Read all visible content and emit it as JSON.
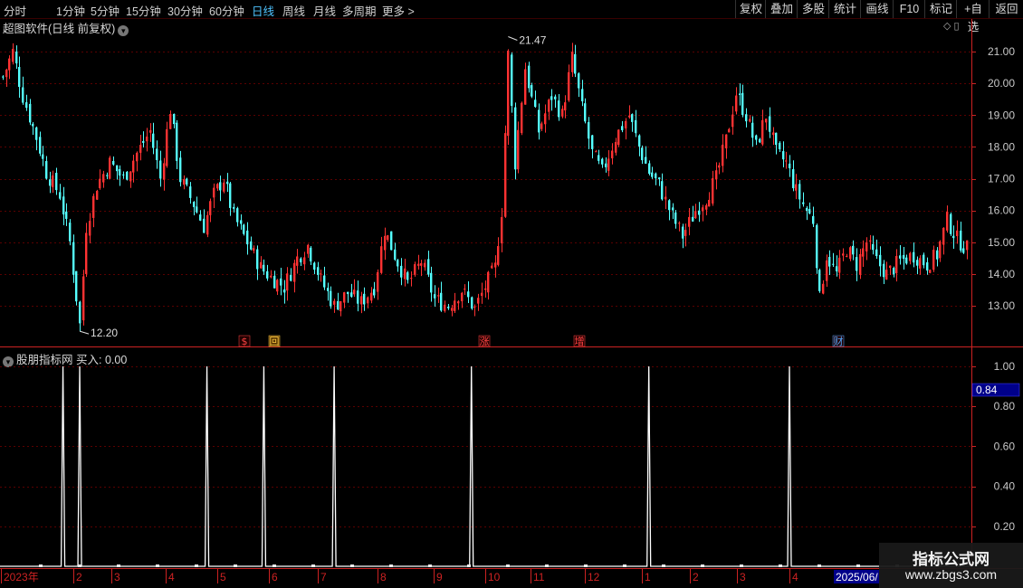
{
  "toolbar": {
    "periods": [
      "分时",
      "1分钟",
      "5分钟",
      "15分钟",
      "30分钟",
      "60分钟",
      "日线",
      "周线",
      "月线",
      "多周期",
      "更多 >"
    ],
    "active_period": "日线",
    "right_buttons": [
      "复权",
      "叠加",
      "多股",
      "统计",
      "画线",
      "F10",
      "标记",
      "+自选",
      "返回"
    ]
  },
  "main_chart": {
    "title": "超图软件(日线 前复权)",
    "title_icon": "chevron-down-icon",
    "corner_icons": "◇ ▯",
    "high_label": "21.47",
    "low_label": "12.20",
    "price_ticks": [
      "21.00",
      "20.00",
      "19.00",
      "18.00",
      "17.00",
      "16.00",
      "15.00",
      "14.00",
      "13.00"
    ],
    "event_markers": [
      "$",
      "回",
      "涨",
      "增",
      "财"
    ],
    "colors": {
      "up": "#ff3232",
      "down": "#54ffff",
      "grid": "#5a0000",
      "axis": "#cc2222",
      "text": "#c8c8c8"
    }
  },
  "indicator": {
    "title": "股朋指标网",
    "value_label": "买入: 0.00",
    "ticks": [
      "1.00",
      "0.80",
      "0.60",
      "0.40",
      "0.20"
    ],
    "cursor_value": "0.84"
  },
  "time_axis": {
    "labels": [
      "2023年",
      "2",
      "3",
      "4",
      "5",
      "6",
      "7",
      "8",
      "9",
      "10",
      "11",
      "12",
      "1",
      "2",
      "3",
      "4"
    ],
    "cursor_date": "2025/06/"
  },
  "watermark": {
    "title": "指标公式网",
    "url": "www.zbgs3.com"
  },
  "chart_data": {
    "type": "candlestick",
    "title": "超图软件(日线 前复权)",
    "ylim": [
      12.2,
      21.47
    ],
    "y_ticks": [
      13,
      14,
      15,
      16,
      17,
      18,
      19,
      20,
      21
    ],
    "period_high": 21.47,
    "period_low": 12.2,
    "anchors": [
      [
        0,
        20.2
      ],
      [
        3,
        21.0
      ],
      [
        6,
        19.6
      ],
      [
        10,
        18.3
      ],
      [
        13,
        17.2
      ],
      [
        17,
        16.5
      ],
      [
        20,
        15.0
      ],
      [
        23,
        12.4
      ],
      [
        25,
        15.5
      ],
      [
        28,
        16.8
      ],
      [
        32,
        17.5
      ],
      [
        36,
        17.0
      ],
      [
        40,
        17.8
      ],
      [
        44,
        18.5
      ],
      [
        47,
        17.0
      ],
      [
        50,
        19.2
      ],
      [
        53,
        17.0
      ],
      [
        57,
        16.2
      ],
      [
        60,
        15.5
      ],
      [
        63,
        16.5
      ],
      [
        66,
        17.0
      ],
      [
        69,
        15.8
      ],
      [
        73,
        15.0
      ],
      [
        77,
        14.2
      ],
      [
        80,
        13.9
      ],
      [
        84,
        13.6
      ],
      [
        88,
        14.5
      ],
      [
        91,
        14.9
      ],
      [
        95,
        13.8
      ],
      [
        99,
        13.0
      ],
      [
        103,
        13.4
      ],
      [
        107,
        13.1
      ],
      [
        111,
        13.6
      ],
      [
        114,
        15.4
      ],
      [
        117,
        14.6
      ],
      [
        121,
        13.7
      ],
      [
        125,
        14.4
      ],
      [
        129,
        13.2
      ],
      [
        133,
        13.0
      ],
      [
        137,
        13.5
      ],
      [
        141,
        12.9
      ],
      [
        144,
        13.6
      ],
      [
        147,
        14.2
      ],
      [
        149,
        16.0
      ],
      [
        151,
        20.9
      ],
      [
        153,
        17.5
      ],
      [
        156,
        20.5
      ],
      [
        160,
        18.5
      ],
      [
        164,
        19.6
      ],
      [
        167,
        19.0
      ],
      [
        170,
        20.8
      ],
      [
        173,
        19.2
      ],
      [
        176,
        17.8
      ],
      [
        179,
        17.2
      ],
      [
        183,
        18.3
      ],
      [
        187,
        19.0
      ],
      [
        190,
        18.0
      ],
      [
        193,
        17.2
      ],
      [
        196,
        16.8
      ],
      [
        200,
        15.8
      ],
      [
        203,
        15.2
      ],
      [
        207,
        16.0
      ],
      [
        210,
        16.4
      ],
      [
        213,
        17.0
      ],
      [
        216,
        18.2
      ],
      [
        219,
        19.7
      ],
      [
        222,
        19.0
      ],
      [
        225,
        18.0
      ],
      [
        228,
        19.0
      ],
      [
        231,
        17.8
      ],
      [
        234,
        17.5
      ],
      [
        237,
        16.6
      ],
      [
        240,
        16.0
      ],
      [
        242,
        15.7
      ],
      [
        244,
        13.2
      ],
      [
        246,
        14.6
      ],
      [
        249,
        14.0
      ],
      [
        252,
        14.8
      ],
      [
        255,
        14.3
      ],
      [
        258,
        15.0
      ],
      [
        261,
        14.4
      ],
      [
        264,
        14.0
      ],
      [
        268,
        14.4
      ],
      [
        272,
        14.6
      ],
      [
        276,
        14.3
      ],
      [
        279,
        14.6
      ],
      [
        282,
        15.7
      ],
      [
        285,
        15.1
      ],
      [
        288,
        14.8
      ]
    ],
    "indicator": {
      "name": "股朋指标网",
      "ylim": [
        0,
        1.0
      ],
      "signal_candle_indices": [
        18,
        23,
        61,
        78,
        99,
        140,
        193,
        235
      ]
    }
  }
}
